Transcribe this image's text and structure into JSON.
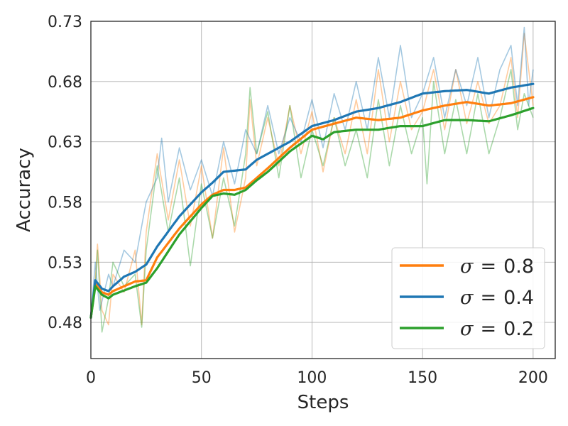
{
  "chart_data": {
    "type": "line",
    "title": "",
    "xlabel": "Steps",
    "ylabel": "Accuracy",
    "xlim": [
      0,
      210
    ],
    "ylim": [
      0.45,
      0.73
    ],
    "x_ticks": [
      0,
      50,
      100,
      150,
      200
    ],
    "x_tick_labels": [
      "0",
      "50",
      "100",
      "150",
      "200"
    ],
    "y_ticks": [
      0.48,
      0.53,
      0.58,
      0.63,
      0.68,
      0.73
    ],
    "y_tick_labels": [
      "0.48",
      "0.53",
      "0.58",
      "0.63",
      "0.68",
      "0.73"
    ],
    "grid": true,
    "legend_position": "lower-right",
    "series": [
      {
        "name": "σ = 0.8",
        "legend_sigma": "σ",
        "legend_eq": "=",
        "legend_value": "0.8",
        "color": "#ff7f0e",
        "raw_anchors": [
          [
            0,
            0.484
          ],
          [
            2,
            0.515
          ],
          [
            3,
            0.545
          ],
          [
            5,
            0.49
          ],
          [
            8,
            0.478
          ],
          [
            10,
            0.52
          ],
          [
            15,
            0.505
          ],
          [
            20,
            0.54
          ],
          [
            23,
            0.478
          ],
          [
            25,
            0.555
          ],
          [
            30,
            0.62
          ],
          [
            35,
            0.565
          ],
          [
            40,
            0.615
          ],
          [
            45,
            0.56
          ],
          [
            50,
            0.61
          ],
          [
            55,
            0.55
          ],
          [
            60,
            0.625
          ],
          [
            65,
            0.555
          ],
          [
            70,
            0.6
          ],
          [
            72,
            0.665
          ],
          [
            75,
            0.61
          ],
          [
            80,
            0.65
          ],
          [
            85,
            0.61
          ],
          [
            90,
            0.66
          ],
          [
            95,
            0.62
          ],
          [
            100,
            0.655
          ],
          [
            105,
            0.605
          ],
          [
            110,
            0.65
          ],
          [
            115,
            0.62
          ],
          [
            120,
            0.665
          ],
          [
            125,
            0.62
          ],
          [
            130,
            0.69
          ],
          [
            135,
            0.63
          ],
          [
            140,
            0.68
          ],
          [
            145,
            0.64
          ],
          [
            150,
            0.655
          ],
          [
            155,
            0.69
          ],
          [
            160,
            0.64
          ],
          [
            165,
            0.69
          ],
          [
            170,
            0.645
          ],
          [
            175,
            0.68
          ],
          [
            180,
            0.645
          ],
          [
            185,
            0.66
          ],
          [
            190,
            0.7
          ],
          [
            193,
            0.65
          ],
          [
            196,
            0.72
          ],
          [
            200,
            0.66
          ]
        ],
        "smooth_anchors": [
          [
            0,
            0.484
          ],
          [
            2,
            0.512
          ],
          [
            5,
            0.505
          ],
          [
            8,
            0.503
          ],
          [
            10,
            0.506
          ],
          [
            20,
            0.514
          ],
          [
            25,
            0.515
          ],
          [
            30,
            0.534
          ],
          [
            40,
            0.558
          ],
          [
            50,
            0.578
          ],
          [
            55,
            0.586
          ],
          [
            60,
            0.59
          ],
          [
            65,
            0.59
          ],
          [
            70,
            0.592
          ],
          [
            75,
            0.6
          ],
          [
            80,
            0.608
          ],
          [
            90,
            0.625
          ],
          [
            100,
            0.64
          ],
          [
            110,
            0.645
          ],
          [
            120,
            0.65
          ],
          [
            130,
            0.648
          ],
          [
            140,
            0.65
          ],
          [
            150,
            0.656
          ],
          [
            160,
            0.66
          ],
          [
            170,
            0.663
          ],
          [
            180,
            0.66
          ],
          [
            190,
            0.662
          ],
          [
            200,
            0.667
          ]
        ]
      },
      {
        "name": "σ = 0.4",
        "legend_sigma": "σ",
        "legend_eq": "=",
        "legend_value": "0.4",
        "color": "#1f77b4",
        "raw_anchors": [
          [
            0,
            0.484
          ],
          [
            2,
            0.53
          ],
          [
            4,
            0.49
          ],
          [
            8,
            0.52
          ],
          [
            10,
            0.51
          ],
          [
            15,
            0.54
          ],
          [
            20,
            0.53
          ],
          [
            25,
            0.58
          ],
          [
            30,
            0.6
          ],
          [
            32,
            0.633
          ],
          [
            35,
            0.58
          ],
          [
            40,
            0.625
          ],
          [
            45,
            0.59
          ],
          [
            50,
            0.615
          ],
          [
            55,
            0.585
          ],
          [
            60,
            0.63
          ],
          [
            65,
            0.595
          ],
          [
            70,
            0.64
          ],
          [
            75,
            0.62
          ],
          [
            80,
            0.66
          ],
          [
            85,
            0.62
          ],
          [
            90,
            0.65
          ],
          [
            95,
            0.63
          ],
          [
            100,
            0.665
          ],
          [
            105,
            0.625
          ],
          [
            110,
            0.67
          ],
          [
            115,
            0.64
          ],
          [
            120,
            0.68
          ],
          [
            125,
            0.64
          ],
          [
            130,
            0.7
          ],
          [
            135,
            0.65
          ],
          [
            140,
            0.71
          ],
          [
            145,
            0.65
          ],
          [
            150,
            0.67
          ],
          [
            155,
            0.7
          ],
          [
            160,
            0.65
          ],
          [
            165,
            0.69
          ],
          [
            170,
            0.66
          ],
          [
            175,
            0.7
          ],
          [
            180,
            0.65
          ],
          [
            185,
            0.69
          ],
          [
            190,
            0.71
          ],
          [
            193,
            0.66
          ],
          [
            196,
            0.725
          ],
          [
            198,
            0.66
          ],
          [
            200,
            0.69
          ]
        ],
        "smooth_anchors": [
          [
            0,
            0.484
          ],
          [
            2,
            0.515
          ],
          [
            5,
            0.508
          ],
          [
            8,
            0.506
          ],
          [
            10,
            0.51
          ],
          [
            15,
            0.518
          ],
          [
            20,
            0.522
          ],
          [
            25,
            0.528
          ],
          [
            30,
            0.543
          ],
          [
            40,
            0.568
          ],
          [
            50,
            0.588
          ],
          [
            55,
            0.596
          ],
          [
            60,
            0.605
          ],
          [
            65,
            0.606
          ],
          [
            70,
            0.607
          ],
          [
            75,
            0.615
          ],
          [
            80,
            0.62
          ],
          [
            90,
            0.63
          ],
          [
            100,
            0.643
          ],
          [
            110,
            0.648
          ],
          [
            120,
            0.655
          ],
          [
            130,
            0.658
          ],
          [
            140,
            0.663
          ],
          [
            150,
            0.67
          ],
          [
            160,
            0.672
          ],
          [
            170,
            0.673
          ],
          [
            180,
            0.67
          ],
          [
            190,
            0.675
          ],
          [
            200,
            0.678
          ]
        ]
      },
      {
        "name": "σ = 0.2",
        "legend_sigma": "σ",
        "legend_eq": "=",
        "legend_value": "0.2",
        "color": "#2ca02c",
        "raw_anchors": [
          [
            0,
            0.484
          ],
          [
            2,
            0.51
          ],
          [
            3,
            0.54
          ],
          [
            5,
            0.472
          ],
          [
            8,
            0.5
          ],
          [
            10,
            0.53
          ],
          [
            15,
            0.51
          ],
          [
            20,
            0.52
          ],
          [
            23,
            0.476
          ],
          [
            25,
            0.54
          ],
          [
            30,
            0.61
          ],
          [
            35,
            0.555
          ],
          [
            40,
            0.6
          ],
          [
            45,
            0.527
          ],
          [
            50,
            0.595
          ],
          [
            55,
            0.55
          ],
          [
            60,
            0.6
          ],
          [
            65,
            0.56
          ],
          [
            70,
            0.62
          ],
          [
            72,
            0.675
          ],
          [
            75,
            0.62
          ],
          [
            80,
            0.655
          ],
          [
            85,
            0.6
          ],
          [
            90,
            0.66
          ],
          [
            95,
            0.6
          ],
          [
            100,
            0.64
          ],
          [
            105,
            0.61
          ],
          [
            110,
            0.65
          ],
          [
            115,
            0.61
          ],
          [
            120,
            0.64
          ],
          [
            125,
            0.6
          ],
          [
            130,
            0.665
          ],
          [
            135,
            0.61
          ],
          [
            140,
            0.66
          ],
          [
            145,
            0.62
          ],
          [
            150,
            0.65
          ],
          [
            152,
            0.595
          ],
          [
            155,
            0.68
          ],
          [
            160,
            0.62
          ],
          [
            165,
            0.665
          ],
          [
            170,
            0.62
          ],
          [
            175,
            0.67
          ],
          [
            180,
            0.62
          ],
          [
            185,
            0.65
          ],
          [
            190,
            0.69
          ],
          [
            193,
            0.64
          ],
          [
            196,
            0.67
          ],
          [
            200,
            0.65
          ]
        ],
        "smooth_anchors": [
          [
            0,
            0.484
          ],
          [
            2,
            0.51
          ],
          [
            5,
            0.503
          ],
          [
            8,
            0.5
          ],
          [
            10,
            0.503
          ],
          [
            20,
            0.51
          ],
          [
            25,
            0.513
          ],
          [
            30,
            0.525
          ],
          [
            40,
            0.553
          ],
          [
            50,
            0.575
          ],
          [
            55,
            0.585
          ],
          [
            60,
            0.587
          ],
          [
            65,
            0.586
          ],
          [
            70,
            0.59
          ],
          [
            75,
            0.598
          ],
          [
            80,
            0.605
          ],
          [
            90,
            0.622
          ],
          [
            100,
            0.635
          ],
          [
            105,
            0.632
          ],
          [
            110,
            0.638
          ],
          [
            120,
            0.64
          ],
          [
            130,
            0.64
          ],
          [
            140,
            0.643
          ],
          [
            150,
            0.643
          ],
          [
            160,
            0.648
          ],
          [
            170,
            0.648
          ],
          [
            180,
            0.647
          ],
          [
            190,
            0.652
          ],
          [
            200,
            0.658
          ]
        ]
      }
    ]
  }
}
